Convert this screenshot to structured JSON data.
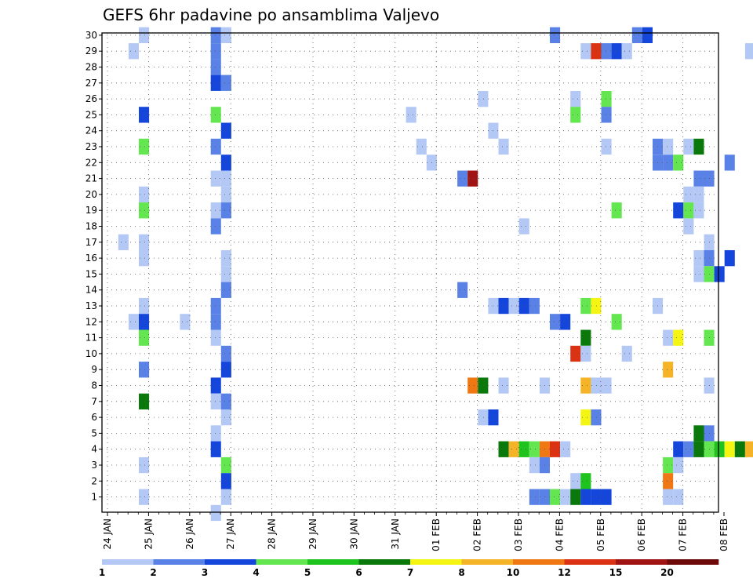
{
  "chart_data": {
    "type": "heatmap",
    "title": "GEFS 6hr padavine po ansamblima Valjevo",
    "x_ticks": [
      "24 JAN",
      "25 JAN",
      "26 JAN",
      "27 JAN",
      "28 JAN",
      "29 JAN",
      "30 JAN",
      "31 JAN",
      "01 FEB",
      "02 FEB",
      "03 FEB",
      "04 FEB",
      "05 FEB",
      "06 FEB",
      "07 FEB",
      "08 FEB"
    ],
    "x_steps_per_day": 4,
    "y_range": [
      1,
      30
    ],
    "grid": true,
    "color_scale": {
      "labels": [
        "1",
        "2",
        "3",
        "4",
        "5",
        "6",
        "7",
        "8",
        "10",
        "12",
        "15",
        "20"
      ],
      "colors": [
        "#b4c8f5",
        "#5a82e6",
        "#1446dc",
        "#64e650",
        "#1ec31e",
        "#0a780a",
        "#f5f514",
        "#f5b428",
        "#f07814",
        "#dc3214",
        "#a01414",
        "#6e0a0a"
      ]
    },
    "cells": [
      [
        30,
        1,
        0
      ],
      [
        30,
        8,
        1
      ],
      [
        30,
        9,
        0
      ],
      [
        30,
        41,
        1
      ],
      [
        30,
        49,
        1
      ],
      [
        30,
        50,
        2
      ],
      [
        29,
        0,
        0
      ],
      [
        29,
        8,
        1
      ],
      [
        29,
        44,
        0
      ],
      [
        29,
        45,
        9
      ],
      [
        29,
        46,
        1
      ],
      [
        29,
        47,
        2
      ],
      [
        29,
        48,
        0
      ],
      [
        29,
        60,
        0
      ],
      [
        28,
        8,
        1
      ],
      [
        27,
        8,
        2
      ],
      [
        27,
        9,
        1
      ],
      [
        26,
        34,
        0
      ],
      [
        26,
        43,
        0
      ],
      [
        26,
        46,
        3
      ],
      [
        25,
        1,
        2
      ],
      [
        25,
        8,
        3
      ],
      [
        25,
        27,
        0
      ],
      [
        25,
        43,
        3
      ],
      [
        25,
        46,
        1
      ],
      [
        24,
        9,
        2
      ],
      [
        24,
        35,
        0
      ],
      [
        23,
        1,
        3
      ],
      [
        23,
        8,
        1
      ],
      [
        23,
        28,
        0
      ],
      [
        23,
        36,
        0
      ],
      [
        23,
        46,
        0
      ],
      [
        23,
        51,
        1
      ],
      [
        23,
        52,
        0
      ],
      [
        23,
        54,
        0
      ],
      [
        23,
        55,
        5
      ],
      [
        22,
        9,
        2
      ],
      [
        22,
        29,
        0
      ],
      [
        22,
        51,
        1
      ],
      [
        22,
        52,
        1
      ],
      [
        22,
        53,
        3
      ],
      [
        22,
        58,
        1
      ],
      [
        21,
        8,
        0
      ],
      [
        21,
        9,
        0
      ],
      [
        21,
        32,
        1
      ],
      [
        21,
        33,
        10
      ],
      [
        21,
        55,
        1
      ],
      [
        21,
        56,
        1
      ],
      [
        20,
        1,
        0
      ],
      [
        20,
        9,
        0
      ],
      [
        20,
        54,
        0
      ],
      [
        20,
        55,
        0
      ],
      [
        19,
        1,
        3
      ],
      [
        19,
        8,
        0
      ],
      [
        19,
        9,
        1
      ],
      [
        19,
        53,
        2
      ],
      [
        19,
        54,
        3
      ],
      [
        19,
        55,
        0
      ],
      [
        19,
        47,
        3
      ],
      [
        18,
        8,
        1
      ],
      [
        18,
        38,
        0
      ],
      [
        18,
        54,
        0
      ],
      [
        17,
        -1,
        0
      ],
      [
        17,
        1,
        0
      ],
      [
        17,
        56,
        0
      ],
      [
        16,
        1,
        0
      ],
      [
        16,
        9,
        0
      ],
      [
        16,
        55,
        0
      ],
      [
        16,
        56,
        1
      ],
      [
        16,
        58,
        2
      ],
      [
        15,
        9,
        0
      ],
      [
        15,
        55,
        0
      ],
      [
        15,
        56,
        3
      ],
      [
        15,
        57,
        2
      ],
      [
        14,
        9,
        1
      ],
      [
        14,
        32,
        1
      ],
      [
        13,
        1,
        0
      ],
      [
        13,
        8,
        1
      ],
      [
        13,
        35,
        0
      ],
      [
        13,
        36,
        2
      ],
      [
        13,
        37,
        0
      ],
      [
        13,
        38,
        2
      ],
      [
        13,
        39,
        1
      ],
      [
        13,
        44,
        3
      ],
      [
        13,
        45,
        6
      ],
      [
        13,
        51,
        0
      ],
      [
        12,
        0,
        0
      ],
      [
        12,
        1,
        2
      ],
      [
        12,
        5,
        0
      ],
      [
        12,
        8,
        1
      ],
      [
        12,
        41,
        1
      ],
      [
        12,
        42,
        2
      ],
      [
        12,
        47,
        3
      ],
      [
        11,
        1,
        3
      ],
      [
        11,
        8,
        0
      ],
      [
        11,
        44,
        5
      ],
      [
        11,
        52,
        0
      ],
      [
        11,
        53,
        6
      ],
      [
        11,
        56,
        3
      ],
      [
        10,
        9,
        1
      ],
      [
        10,
        43,
        9
      ],
      [
        10,
        44,
        0
      ],
      [
        10,
        48,
        0
      ],
      [
        9,
        1,
        1
      ],
      [
        9,
        9,
        2
      ],
      [
        9,
        52,
        7
      ],
      [
        8,
        8,
        2
      ],
      [
        8,
        33,
        8
      ],
      [
        8,
        34,
        5
      ],
      [
        8,
        36,
        0
      ],
      [
        8,
        40,
        0
      ],
      [
        8,
        44,
        7
      ],
      [
        8,
        45,
        0
      ],
      [
        8,
        46,
        0
      ],
      [
        8,
        56,
        0
      ],
      [
        7,
        1,
        5
      ],
      [
        7,
        8,
        0
      ],
      [
        7,
        9,
        1
      ],
      [
        6,
        9,
        0
      ],
      [
        6,
        34,
        0
      ],
      [
        6,
        35,
        2
      ],
      [
        6,
        44,
        6
      ],
      [
        6,
        45,
        1
      ],
      [
        5,
        8,
        0
      ],
      [
        5,
        55,
        5
      ],
      [
        5,
        56,
        1
      ],
      [
        4,
        8,
        2
      ],
      [
        4,
        36,
        5
      ],
      [
        4,
        37,
        7
      ],
      [
        4,
        38,
        4
      ],
      [
        4,
        39,
        3
      ],
      [
        4,
        40,
        8
      ],
      [
        4,
        41,
        9
      ],
      [
        4,
        42,
        0
      ],
      [
        4,
        53,
        2
      ],
      [
        4,
        54,
        1
      ],
      [
        4,
        55,
        5
      ],
      [
        4,
        56,
        3
      ],
      [
        4,
        57,
        4
      ],
      [
        4,
        58,
        6
      ],
      [
        4,
        59,
        5
      ],
      [
        4,
        60,
        7
      ],
      [
        3,
        1,
        0
      ],
      [
        3,
        9,
        3
      ],
      [
        3,
        39,
        0
      ],
      [
        3,
        40,
        1
      ],
      [
        3,
        52,
        3
      ],
      [
        3,
        53,
        0
      ],
      [
        2,
        9,
        2
      ],
      [
        2,
        43,
        0
      ],
      [
        2,
        44,
        4
      ],
      [
        2,
        52,
        8
      ],
      [
        1,
        1,
        0
      ],
      [
        1,
        9,
        0
      ],
      [
        1,
        39,
        1
      ],
      [
        1,
        40,
        1
      ],
      [
        1,
        41,
        3
      ],
      [
        1,
        42,
        0
      ],
      [
        1,
        43,
        5
      ],
      [
        1,
        44,
        2
      ],
      [
        1,
        45,
        2
      ],
      [
        1,
        46,
        2
      ],
      [
        1,
        52,
        0
      ],
      [
        1,
        53,
        0
      ],
      [
        0,
        8,
        0
      ]
    ]
  }
}
